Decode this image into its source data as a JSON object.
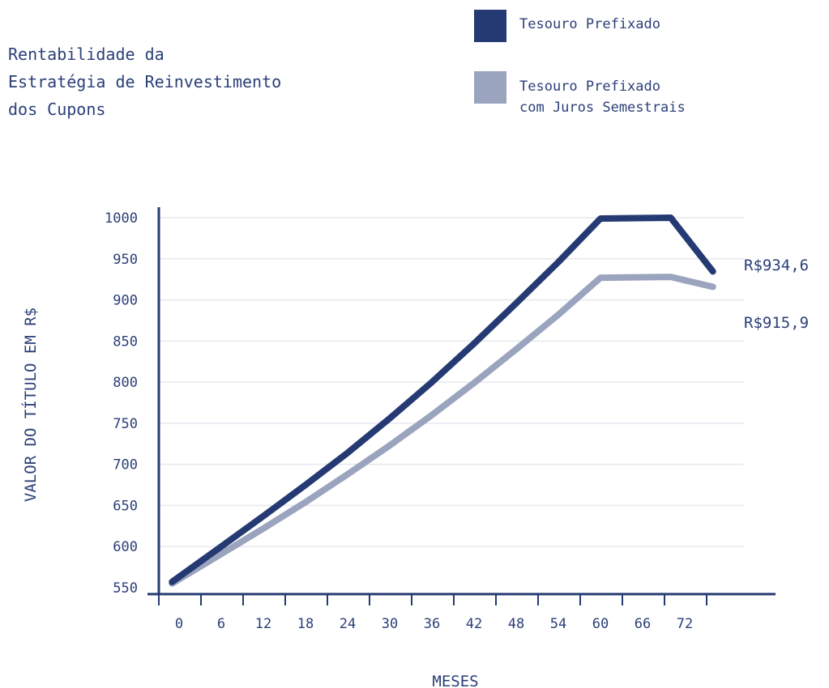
{
  "title_lines": [
    "Rentabilidade da",
    "Estratégia de Reinvestimento",
    "dos Cupons"
  ],
  "legend": [
    {
      "label_lines": [
        "Tesouro Prefixado"
      ],
      "color": "#253a73"
    },
    {
      "label_lines": [
        "Tesouro Prefixado",
        "com Juros Semestrais"
      ],
      "color": "#9aa4be"
    }
  ],
  "chart_data": {
    "type": "line",
    "xlabel": "MESES",
    "ylabel": "VALOR DO TÍTULO EM R$",
    "xlim": [
      -3,
      81
    ],
    "ylim": [
      545,
      1010
    ],
    "x_ticks": [
      0,
      6,
      12,
      18,
      24,
      30,
      36,
      42,
      48,
      54,
      60,
      66,
      72
    ],
    "y_ticks": [
      550,
      600,
      650,
      700,
      750,
      800,
      850,
      900,
      950,
      1000
    ],
    "grid": true,
    "series": [
      {
        "name": "Tesouro Prefixado",
        "color": "#253a73",
        "end_label": "R$934,6",
        "end_value": 934.6,
        "points": [
          [
            -1,
            557
          ],
          [
            6,
            600
          ],
          [
            12,
            637
          ],
          [
            18,
            675
          ],
          [
            24,
            714
          ],
          [
            30,
            756
          ],
          [
            36,
            800
          ],
          [
            42,
            847
          ],
          [
            48,
            896
          ],
          [
            54,
            946
          ],
          [
            60,
            999
          ],
          [
            70,
            1000
          ],
          [
            76,
            934.6
          ]
        ]
      },
      {
        "name": "Tesouro Prefixado com Juros Semestrais",
        "color": "#9aa4be",
        "end_label": "R$915,9",
        "end_value": 915.9,
        "points": [
          [
            -1,
            555
          ],
          [
            6,
            591
          ],
          [
            12,
            622
          ],
          [
            18,
            654
          ],
          [
            24,
            688
          ],
          [
            30,
            723
          ],
          [
            36,
            760
          ],
          [
            42,
            799
          ],
          [
            48,
            840
          ],
          [
            54,
            882
          ],
          [
            60,
            927
          ],
          [
            70,
            928
          ],
          [
            76,
            915.9
          ]
        ]
      }
    ]
  }
}
